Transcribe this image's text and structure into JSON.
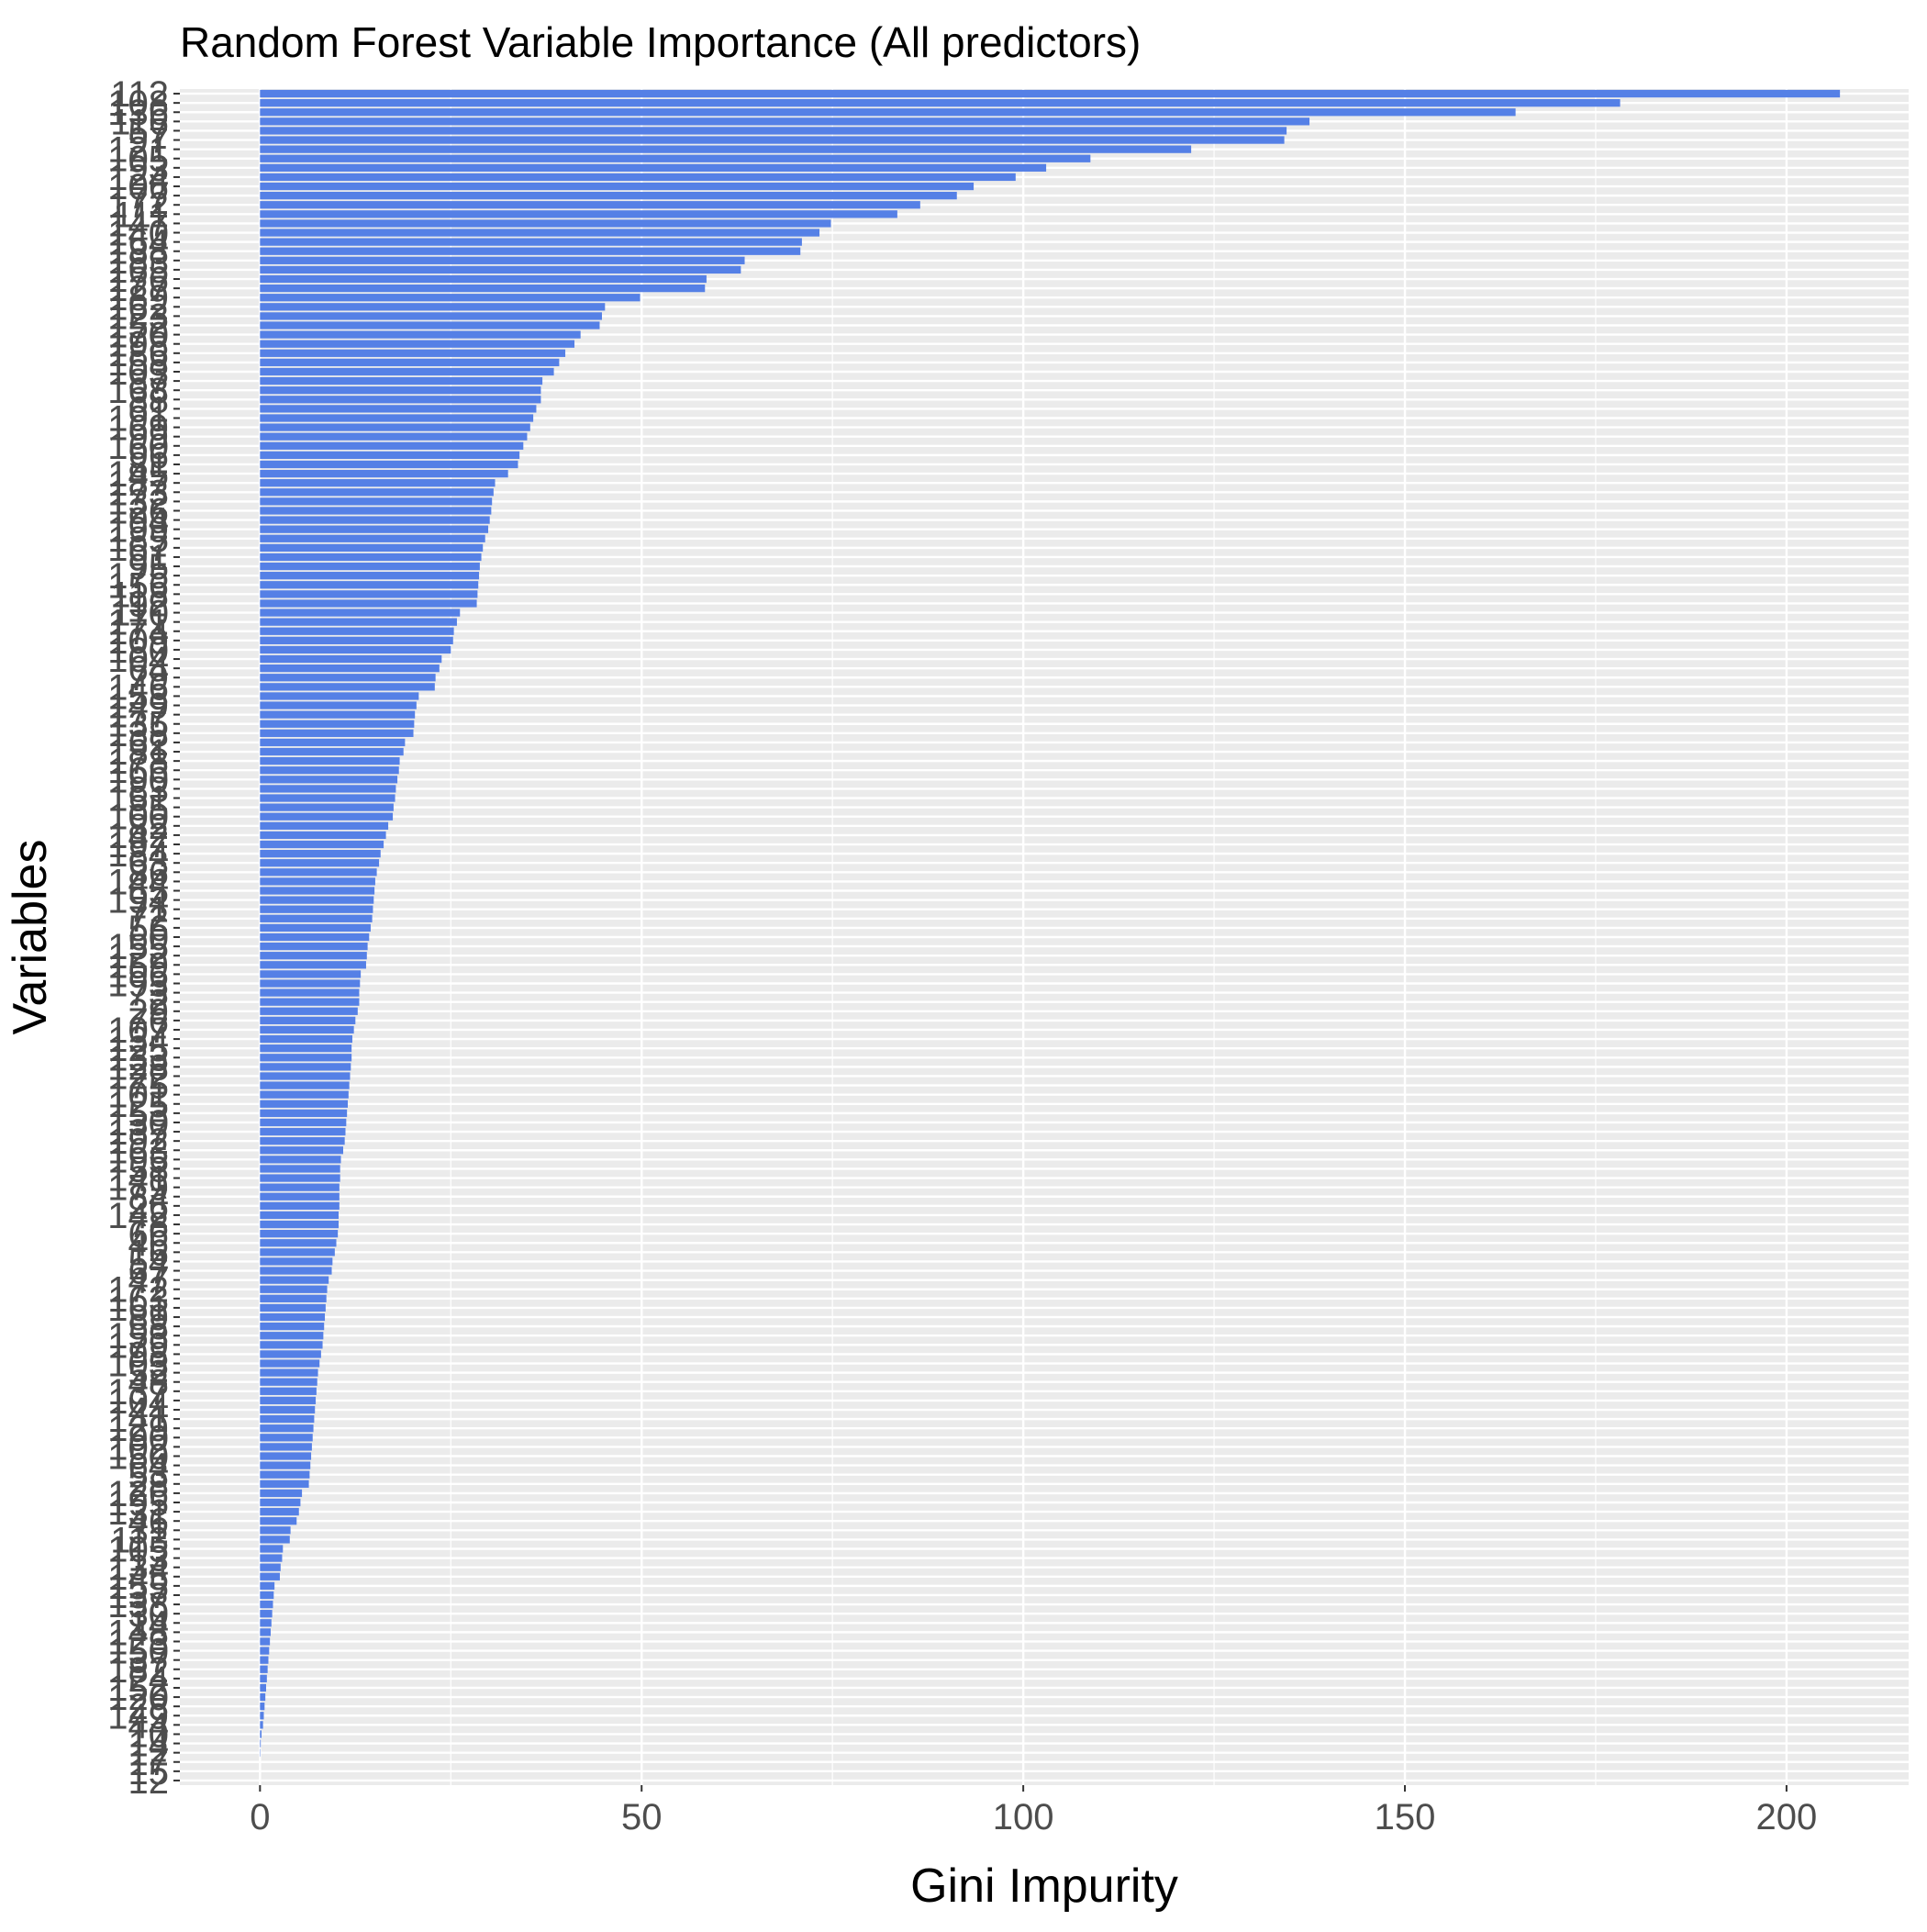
{
  "chart_data": {
    "type": "bar",
    "orientation": "horizontal",
    "title": "Random Forest Variable Importance (All predictors)",
    "xlabel": "Gini Impurity",
    "ylabel": "Variables",
    "xlim": [
      -10.5,
      216
    ],
    "xticks": [
      0,
      50,
      100,
      150,
      200
    ],
    "grid": true,
    "legend": "none",
    "bar_color": "#5580e6",
    "panel_color": "#ebebeb",
    "grid_color": "#ffffff",
    "categories": [
      "112",
      "108",
      "136",
      "116",
      "57",
      "97",
      "121",
      "105",
      "93",
      "124",
      "106",
      "77",
      "172",
      "111",
      "147",
      "140",
      "164",
      "188",
      "183",
      "165",
      "176",
      "127",
      "189",
      "162",
      "123",
      "152",
      "170",
      "198",
      "186",
      "158",
      "103",
      "87",
      "168",
      "88",
      "61",
      "191",
      "169",
      "99",
      "160",
      "96",
      "81",
      "145",
      "187",
      "173",
      "132",
      "126",
      "94",
      "199",
      "185",
      "167",
      "91",
      "95",
      "175",
      "156",
      "118",
      "92",
      "110",
      "171",
      "174",
      "109",
      "180",
      "104",
      "64",
      "79",
      "146",
      "153",
      "149",
      "177",
      "135",
      "138",
      "62",
      "181",
      "178",
      "166",
      "190",
      "83",
      "151",
      "85",
      "100",
      "82",
      "142",
      "197",
      "184",
      "63",
      "86",
      "144",
      "65",
      "194",
      "71",
      "72",
      "56",
      "60",
      "155",
      "122",
      "159",
      "196",
      "193",
      "73",
      "2",
      "29",
      "76",
      "107",
      "134",
      "125",
      "133",
      "128",
      "122",
      "75",
      "101",
      "125",
      "53",
      "130",
      "137",
      "192",
      "163",
      "195",
      "58",
      "141",
      "179",
      "84",
      "26",
      "142",
      "78",
      "66",
      "46",
      "16",
      "54",
      "67",
      "47",
      "172",
      "163",
      "161",
      "89",
      "58",
      "153",
      "179",
      "98",
      "103",
      "52",
      "48",
      "137",
      "104",
      "44",
      "141",
      "129",
      "90",
      "102",
      "150",
      "64",
      "53",
      "28",
      "126",
      "195",
      "131",
      "46",
      "31",
      "113",
      "105",
      "13",
      "134",
      "145",
      "155",
      "137",
      "138",
      "30",
      "14",
      "148",
      "123",
      "150",
      "37",
      "182",
      "24",
      "152",
      "120",
      "28",
      "149",
      "44",
      "10",
      "14",
      "12",
      "17",
      "15",
      "12"
    ],
    "values": [
      207,
      178.2,
      164.5,
      137.5,
      134.5,
      134.2,
      122,
      108.8,
      103,
      99,
      93.5,
      91.3,
      86.5,
      83.5,
      74.8,
      73.3,
      71,
      70.8,
      63.5,
      63,
      58.5,
      58.3,
      49.8,
      45.2,
      44.8,
      44.5,
      42,
      41.2,
      40,
      39.2,
      38.5,
      37,
      36.8,
      36.8,
      36.2,
      35.8,
      35.4,
      35,
      34.5,
      34,
      33.8,
      32.5,
      30.8,
      30.6,
      30.4,
      30.3,
      30.1,
      29.9,
      29.5,
      29.2,
      29,
      28.8,
      28.7,
      28.6,
      28.5,
      28.4,
      26.2,
      25.8,
      25.4,
      25.3,
      25,
      23.8,
      23.5,
      23,
      22.9,
      20.8,
      20.5,
      20.3,
      20.2,
      20.1,
      19,
      18.8,
      18.3,
      18.2,
      18,
      17.8,
      17.7,
      17.5,
      17.4,
      16.8,
      16.5,
      16.2,
      15.8,
      15.6,
      15.3,
      15.1,
      15,
      14.9,
      14.8,
      14.7,
      14.5,
      14.3,
      14.1,
      14,
      13.9,
      13.2,
      13.1,
      13,
      13,
      12.8,
      12.5,
      12.3,
      12.1,
      12,
      12,
      11.9,
      11.8,
      11.7,
      11.6,
      11.5,
      11.4,
      11.3,
      11.2,
      11.1,
      10.9,
      10.6,
      10.5,
      10.5,
      10.4,
      10.4,
      10.4,
      10.3,
      10.3,
      10.2,
      10,
      9.8,
      9.5,
      9.4,
      9,
      8.8,
      8.7,
      8.6,
      8.5,
      8.4,
      8.3,
      8.2,
      8,
      7.8,
      7.6,
      7.5,
      7.4,
      7.3,
      7.2,
      7.1,
      7,
      6.9,
      6.8,
      6.7,
      6.6,
      6.5,
      6.4,
      5.5,
      5.3,
      5.1,
      4.8,
      4,
      3.9,
      3,
      2.9,
      2.7,
      2.6,
      1.9,
      1.8,
      1.7,
      1.6,
      1.5,
      1.4,
      1.3,
      1.2,
      1.1,
      1,
      0.9,
      0.8,
      0.7,
      0.6,
      0.5,
      0.4,
      0.2,
      0.1,
      0.05,
      0,
      0,
      0
    ]
  }
}
